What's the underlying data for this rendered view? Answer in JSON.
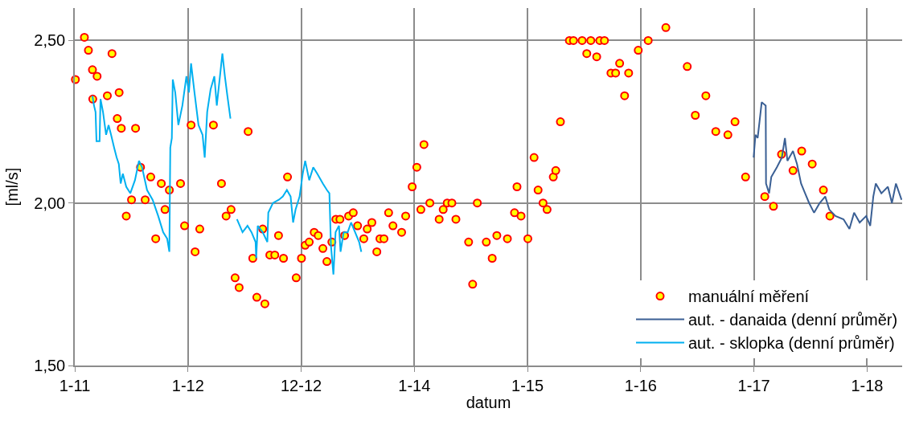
{
  "chart_data": {
    "type": "line",
    "xlabel": "datum",
    "ylabel": "[ml/s]",
    "xlim": [
      "2011-01-01",
      "2018-04-22"
    ],
    "xticks": [
      {
        "value": "2011-01-01",
        "label": "1-11"
      },
      {
        "value": "2012-01-01",
        "label": "1-12"
      },
      {
        "value": "2012-12-31",
        "label": "12-12"
      },
      {
        "value": "2013-12-31",
        "label": "1-14"
      },
      {
        "value": "2014-12-31",
        "label": "1-15"
      },
      {
        "value": "2015-12-31",
        "label": "1-16"
      },
      {
        "value": "2016-12-30",
        "label": "1-17"
      },
      {
        "value": "2017-12-30",
        "label": "1-18"
      }
    ],
    "ylim": [
      1.5,
      2.6
    ],
    "yticks": [
      {
        "value": 1.5,
        "label": "1,50"
      },
      {
        "value": 2.0,
        "label": "2,00"
      },
      {
        "value": 2.5,
        "label": "2,50"
      }
    ],
    "grid": true,
    "legend": "bottom right",
    "series": [
      {
        "name": "manuální měření",
        "type": "scatter",
        "marker": "circle",
        "color": "#ffff00",
        "x": [
          "2011-01-03",
          "2011-02-01",
          "2011-02-14",
          "2011-02-27",
          "2011-03-14",
          "2011-05-01",
          "2011-04-16",
          "2011-05-24",
          "2011-02-28",
          "2011-05-18",
          "2011-05-31",
          "2011-07-16",
          "2011-06-16",
          "2011-07-03",
          "2011-08-01",
          "2011-08-16",
          "2011-09-03",
          "2011-09-19",
          "2011-10-07",
          "2011-10-19",
          "2011-11-02",
          "2011-12-08",
          "2011-12-21",
          "2012-01-11",
          "2012-01-24",
          "2012-02-08",
          "2012-03-23",
          "2012-04-18",
          "2012-05-03",
          "2012-05-19",
          "2012-06-01",
          "2012-06-14",
          "2012-07-13",
          "2012-07-28",
          "2012-08-10",
          "2012-09-05",
          "2012-08-29",
          "2012-09-21",
          "2012-10-07",
          "2012-10-19",
          "2012-11-04",
          "2012-11-17",
          "2012-12-15",
          "2013-01-01",
          "2013-01-13",
          "2013-01-26",
          "2013-02-11",
          "2013-02-24",
          "2013-03-11",
          "2013-03-24",
          "2013-04-09",
          "2013-04-22",
          "2013-05-05",
          "2013-05-20",
          "2013-06-02",
          "2013-06-17",
          "2013-07-01",
          "2013-07-21",
          "2013-08-01",
          "2013-08-16",
          "2013-09-01",
          "2013-09-11",
          "2013-09-24",
          "2013-10-09",
          "2013-10-23",
          "2013-11-20",
          "2013-12-03",
          "2013-12-24",
          "2014-01-08",
          "2014-01-21",
          "2014-01-31",
          "2014-02-19",
          "2014-03-21",
          "2014-04-03",
          "2014-04-16",
          "2014-05-01",
          "2014-05-14",
          "2014-06-24",
          "2014-07-07",
          "2014-07-22",
          "2014-08-20",
          "2014-09-08",
          "2014-09-23",
          "2014-10-27",
          "2014-11-19",
          "2014-11-27",
          "2014-12-10",
          "2015-01-01",
          "2015-01-21",
          "2015-02-03",
          "2015-02-19",
          "2015-03-04",
          "2015-03-24",
          "2015-04-01",
          "2015-04-16",
          "2015-05-15",
          "2015-05-28",
          "2015-06-25",
          "2015-07-23",
          "2015-08-21",
          "2015-09-05",
          "2015-07-10",
          "2015-08-11",
          "2015-09-26",
          "2015-10-11",
          "2015-10-24",
          "2015-11-09",
          "2015-11-22",
          "2015-12-23",
          "2016-01-24",
          "2016-03-21",
          "2016-05-29",
          "2016-07-28",
          "2016-06-24",
          "2016-08-29",
          "2016-10-07",
          "2016-10-30",
          "2016-12-03",
          "2017-02-03",
          "2017-03-03",
          "2017-03-29",
          "2017-06-02",
          "2017-05-05",
          "2017-07-06",
          "2017-08-11",
          "2017-09-01"
        ],
        "values": [
          2.38,
          2.51,
          2.47,
          2.41,
          2.39,
          2.46,
          2.33,
          2.34,
          2.32,
          2.26,
          2.23,
          2.23,
          1.96,
          2.01,
          2.11,
          2.01,
          2.08,
          1.89,
          2.06,
          1.98,
          2.04,
          2.06,
          1.93,
          2.24,
          1.85,
          1.92,
          2.24,
          2.06,
          1.96,
          1.98,
          1.77,
          1.74,
          2.22,
          1.83,
          1.71,
          1.69,
          1.92,
          1.84,
          1.84,
          1.9,
          1.83,
          2.08,
          1.77,
          1.83,
          1.87,
          1.88,
          1.91,
          1.9,
          1.86,
          1.82,
          1.88,
          1.95,
          1.95,
          1.9,
          1.96,
          1.97,
          1.93,
          1.89,
          1.92,
          1.94,
          1.85,
          1.89,
          1.89,
          1.97,
          1.93,
          1.91,
          1.96,
          2.05,
          2.11,
          1.98,
          2.18,
          2.0,
          1.95,
          1.98,
          2.0,
          2.0,
          1.95,
          1.88,
          1.75,
          2.0,
          1.88,
          1.83,
          1.9,
          1.89,
          1.97,
          2.05,
          1.96,
          1.89,
          2.14,
          2.04,
          2.0,
          1.98,
          2.08,
          2.1,
          2.25,
          2.5,
          2.5,
          2.5,
          2.5,
          2.5,
          2.5,
          2.46,
          2.45,
          2.4,
          2.4,
          2.43,
          2.33,
          2.4,
          2.47,
          2.5,
          2.54,
          2.42,
          2.33,
          2.27,
          2.22,
          2.21,
          2.25,
          2.08,
          2.02,
          1.99,
          2.15,
          2.16,
          2.1,
          2.12,
          2.04,
          1.96
        ]
      },
      {
        "name": "aut. - danaida (denní průměr)",
        "marker": "none",
        "color": "#3a5f94",
        "x": [
          "2016-12-29",
          "2017-01-04",
          "2017-01-11",
          "2017-01-17",
          "2017-01-24",
          "2017-02-06",
          "2017-02-07",
          "2017-02-17",
          "2017-02-24",
          "2017-03-14",
          "2017-03-30",
          "2017-04-09",
          "2017-04-17",
          "2017-05-05",
          "2017-05-18",
          "2017-05-31",
          "2017-06-13",
          "2017-06-26",
          "2017-07-12",
          "2017-07-30",
          "2017-08-17",
          "2017-08-30",
          "2017-09-19",
          "2017-10-15",
          "2017-11-03",
          "2017-11-18",
          "2017-12-06",
          "2017-12-27",
          "2018-01-09",
          "2018-01-19",
          "2018-01-27",
          "2018-02-14",
          "2018-03-07",
          "2018-03-20",
          "2018-04-02",
          "2018-04-20"
        ],
        "values": [
          2.14,
          2.21,
          2.2,
          2.25,
          2.31,
          2.3,
          2.06,
          2.03,
          2.08,
          2.11,
          2.14,
          2.2,
          2.13,
          2.16,
          2.12,
          2.06,
          2.03,
          2.0,
          1.97,
          2.0,
          2.02,
          1.98,
          1.96,
          1.95,
          1.92,
          1.97,
          1.94,
          1.96,
          1.93,
          2.02,
          2.06,
          2.03,
          2.05,
          2.0,
          2.06,
          2.01
        ]
      },
      {
        "name": "aut. - sklopka (denní průměr)",
        "marker": "none",
        "color": "#00b0f0",
        "x": [
          "2011-02-27",
          "2011-03-04",
          "2011-03-09",
          "2011-03-12",
          "2011-03-22",
          "2011-03-25",
          "2011-04-02",
          "2011-04-12",
          "2011-04-20",
          "2011-04-28",
          "2011-05-08",
          "2011-05-16",
          "2011-05-23",
          "2011-05-29",
          "2011-06-05",
          "2011-06-16",
          "2011-06-29",
          "2011-07-14",
          "2011-07-27",
          "2011-08-06",
          "2011-08-22",
          "2011-09-09",
          "2011-09-27",
          "2011-10-13",
          "2011-10-26",
          "2011-11-02",
          "2011-11-05",
          "2011-11-10",
          "2011-11-13",
          "2011-11-21",
          "2011-12-01",
          "2011-12-14",
          "2011-12-27",
          "2012-01-04",
          "2012-01-11",
          "2012-01-22",
          "2012-02-04",
          "2012-02-17",
          "2012-02-24",
          "2012-03-03",
          "2012-03-14",
          "2012-03-26",
          "2012-04-03",
          "2012-04-21",
          "2012-04-29",
          "2012-05-07",
          "2012-05-17",
          "2012-05-27",
          "2012-06-07",
          "2012-06-25",
          "2012-07-11",
          "2012-07-24",
          "2012-08-06",
          "2012-08-08",
          "2012-08-13",
          "2012-08-29",
          "2012-09-13",
          "2012-09-16",
          "2012-10-01",
          "2012-10-20",
          "2012-11-02",
          "2012-11-15",
          "2012-11-27",
          "2012-12-05",
          "2012-12-13",
          "2012-12-26",
          "2013-01-05",
          "2013-01-13",
          "2013-01-26",
          "2013-02-08",
          "2013-02-21",
          "2013-03-11",
          "2013-03-24",
          "2013-04-01",
          "2013-04-06",
          "2013-04-14",
          "2013-04-21",
          "2013-05-02",
          "2013-05-07",
          "2013-05-17",
          "2013-05-30",
          "2013-06-10",
          "2013-06-23",
          "2013-07-06",
          "2013-07-13"
        ],
        "values": [
          2.33,
          2.3,
          2.28,
          2.19,
          2.19,
          2.32,
          2.28,
          2.21,
          2.24,
          2.21,
          2.17,
          2.14,
          2.12,
          2.06,
          2.09,
          2.05,
          2.03,
          2.07,
          2.13,
          2.11,
          2.04,
          2.01,
          1.96,
          1.91,
          1.89,
          1.85,
          2.17,
          2.2,
          2.38,
          2.34,
          2.24,
          2.3,
          2.39,
          2.34,
          2.43,
          2.34,
          2.24,
          2.21,
          2.14,
          2.28,
          2.35,
          2.39,
          2.3,
          2.46,
          2.39,
          2.33,
          2.26,
          null,
          1.95,
          1.91,
          1.93,
          1.91,
          1.88,
          1.83,
          1.93,
          1.91,
          1.88,
          1.97,
          2.0,
          2.01,
          2.02,
          2.04,
          2.02,
          1.94,
          1.98,
          2.02,
          2.09,
          2.13,
          2.07,
          2.11,
          2.09,
          2.06,
          2.04,
          2.03,
          1.87,
          1.78,
          1.91,
          1.93,
          1.85,
          1.91,
          1.91,
          1.94,
          1.91,
          1.88,
          1.85
        ]
      }
    ]
  }
}
